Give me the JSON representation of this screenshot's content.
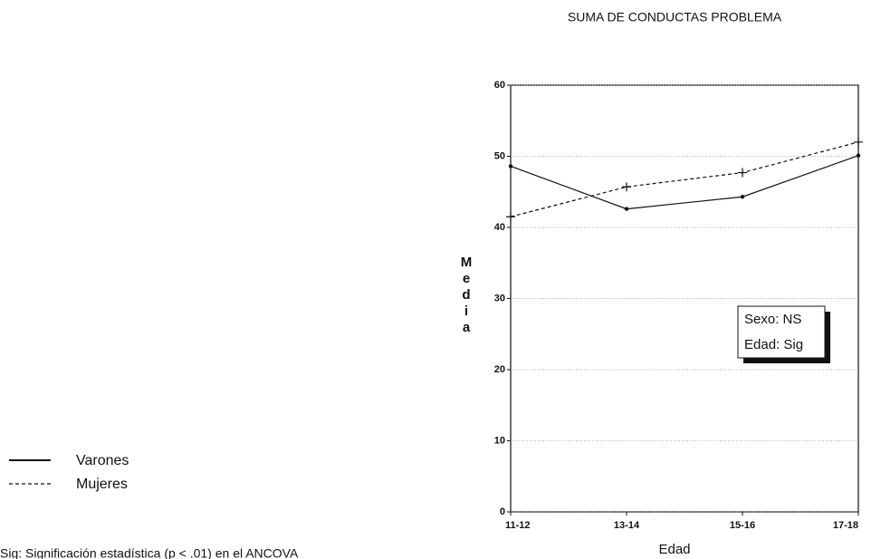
{
  "chart_data": {
    "type": "line",
    "title": "SUMA DE CONDUCTAS PROBLEMA",
    "x_label": "Edad",
    "y_label": "Media",
    "categories": [
      "11-12",
      "13-14",
      "15-16",
      "17-18"
    ],
    "series": [
      {
        "name": "Varones",
        "color": "#111111",
        "dash": "solid",
        "marker": "dot",
        "values": [
          48.6,
          42.6,
          44.3,
          50.1
        ]
      },
      {
        "name": "Mujeres",
        "color": "#111111",
        "dash": "dashed",
        "marker": "plus",
        "values": [
          41.5,
          45.7,
          47.7,
          52.0
        ]
      }
    ],
    "ylim": [
      0,
      60
    ],
    "yticks": [
      0,
      10,
      20,
      30,
      40,
      50,
      60
    ],
    "grid": true,
    "annotations": [
      "Sexo: NS",
      "Edad: Sig"
    ],
    "note": "Sig: Significación estadística (p < .01) en el ANCOVA"
  }
}
